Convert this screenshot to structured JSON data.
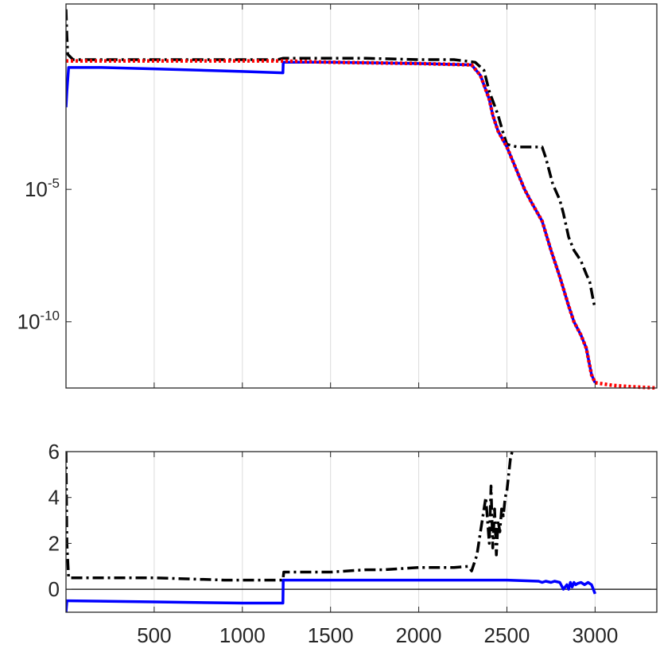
{
  "chart_data": [
    {
      "type": "line",
      "panel": "top",
      "yscale": "log",
      "xlim": [
        0,
        3350
      ],
      "ylim_log10": [
        -12.5,
        2
      ],
      "grid": "x-only",
      "ytick_labels": [
        {
          "value": -5,
          "base": "10",
          "exp": "-5"
        },
        {
          "value": -10,
          "base": "10",
          "exp": "-10"
        }
      ],
      "series": [
        {
          "color": "#000000",
          "style": "dashdot",
          "x": [
            0,
            5,
            10,
            40,
            200,
            500,
            1000,
            1200,
            1230,
            1500,
            1700,
            2000,
            2200,
            2320,
            2370,
            2400,
            2450,
            2480,
            2500,
            2560,
            2620,
            2700,
            2720,
            2760,
            2800,
            2820,
            2850,
            2880,
            2900,
            2920,
            2950,
            2970,
            2990,
            3000
          ],
          "y_log10": [
            1.8,
            0.8,
            0.1,
            -0.1,
            -0.1,
            -0.1,
            -0.1,
            -0.1,
            -0.05,
            -0.05,
            -0.05,
            -0.1,
            -0.1,
            -0.2,
            -0.5,
            -1.3,
            -2.2,
            -2.9,
            -3.3,
            -3.4,
            -3.4,
            -3.4,
            -3.8,
            -4.8,
            -5.4,
            -5.9,
            -6.8,
            -7.3,
            -7.5,
            -7.7,
            -8.2,
            -8.5,
            -9.2,
            -9.5
          ]
        },
        {
          "color": "#0000ff",
          "style": "solid",
          "x": [
            0,
            5,
            15,
            200,
            500,
            1000,
            1230,
            1232,
            1500,
            2000,
            2300,
            2350,
            2400,
            2420,
            2450,
            2500,
            2550,
            2600,
            2640,
            2700,
            2750,
            2800,
            2850,
            2880,
            2920,
            2950,
            2980,
            3000
          ],
          "y_log10": [
            -1.9,
            -1.3,
            -0.4,
            -0.4,
            -0.45,
            -0.55,
            -0.6,
            -0.2,
            -0.2,
            -0.25,
            -0.3,
            -0.7,
            -1.6,
            -2.2,
            -2.8,
            -3.4,
            -4.2,
            -5.0,
            -5.5,
            -6.2,
            -7.3,
            -8.3,
            -9.4,
            -10.0,
            -10.5,
            -11.0,
            -12.0,
            -12.3
          ]
        },
        {
          "color": "#ff0000",
          "style": "dotted",
          "x": [
            0,
            1000,
            1230,
            1500,
            2000,
            2300,
            2350,
            2400,
            2420,
            2450,
            2500,
            2550,
            2600,
            2640,
            2700,
            2750,
            2800,
            2850,
            2880,
            2920,
            2950,
            2980,
            3000,
            3100,
            3200,
            3350
          ],
          "y_log10": [
            -0.15,
            -0.15,
            -0.15,
            -0.2,
            -0.25,
            -0.3,
            -0.7,
            -1.6,
            -2.2,
            -2.8,
            -3.4,
            -4.2,
            -5.0,
            -5.5,
            -6.2,
            -7.3,
            -8.3,
            -9.4,
            -10.0,
            -10.5,
            -11.0,
            -12.0,
            -12.3,
            -12.4,
            -12.45,
            -12.5
          ]
        }
      ]
    },
    {
      "type": "line",
      "panel": "bottom",
      "xlim": [
        0,
        3350
      ],
      "ylim": [
        -1,
        6
      ],
      "grid": "x-only",
      "reference_line_y": 0,
      "xtick_labels": [
        {
          "value": 500,
          "label": "500"
        },
        {
          "value": 1000,
          "label": "1000"
        },
        {
          "value": 1500,
          "label": "1500"
        },
        {
          "value": 2000,
          "label": "2000"
        },
        {
          "value": 2500,
          "label": "2500"
        },
        {
          "value": 3000,
          "label": "3000"
        }
      ],
      "ytick_labels": [
        {
          "value": 0,
          "label": "0"
        },
        {
          "value": 2,
          "label": "2"
        },
        {
          "value": 4,
          "label": "4"
        },
        {
          "value": 6,
          "label": "6"
        }
      ],
      "series": [
        {
          "color": "#000000",
          "style": "dashdot",
          "x": [
            0,
            5,
            15,
            100,
            500,
            900,
            1000,
            1230,
            1235,
            1500,
            1700,
            1800,
            2000,
            2200,
            2280,
            2300,
            2330,
            2350,
            2380,
            2400,
            2410,
            2420,
            2430,
            2440,
            2450,
            2460,
            2470,
            2480,
            2490,
            2500,
            2510,
            2520,
            2530
          ],
          "y": [
            6.0,
            2.0,
            0.5,
            0.5,
            0.5,
            0.4,
            0.4,
            0.4,
            0.75,
            0.75,
            0.85,
            0.85,
            0.95,
            0.95,
            1.0,
            0.8,
            1.5,
            2.5,
            4.0,
            2.0,
            4.5,
            1.8,
            3.5,
            1.5,
            3.0,
            2.5,
            3.5,
            3.2,
            4.0,
            4.3,
            5.0,
            5.7,
            6.0
          ]
        },
        {
          "color": "#0000ff",
          "style": "solid",
          "x": [
            0,
            5,
            15,
            500,
            1000,
            1230,
            1232,
            1500,
            2000,
            2500,
            2680,
            2700,
            2720,
            2750,
            2770,
            2800,
            2820,
            2840,
            2850,
            2860,
            2870,
            2880,
            2890,
            2900,
            2920,
            2940,
            2960,
            2980,
            3000
          ],
          "y": [
            -1.0,
            -0.5,
            -0.5,
            -0.55,
            -0.6,
            -0.6,
            0.4,
            0.4,
            0.4,
            0.4,
            0.35,
            0.3,
            0.35,
            0.3,
            0.35,
            0.3,
            0.0,
            0.2,
            0.0,
            0.3,
            0.1,
            0.3,
            0.2,
            0.25,
            0.3,
            0.2,
            0.3,
            0.2,
            -0.2
          ]
        }
      ]
    }
  ]
}
